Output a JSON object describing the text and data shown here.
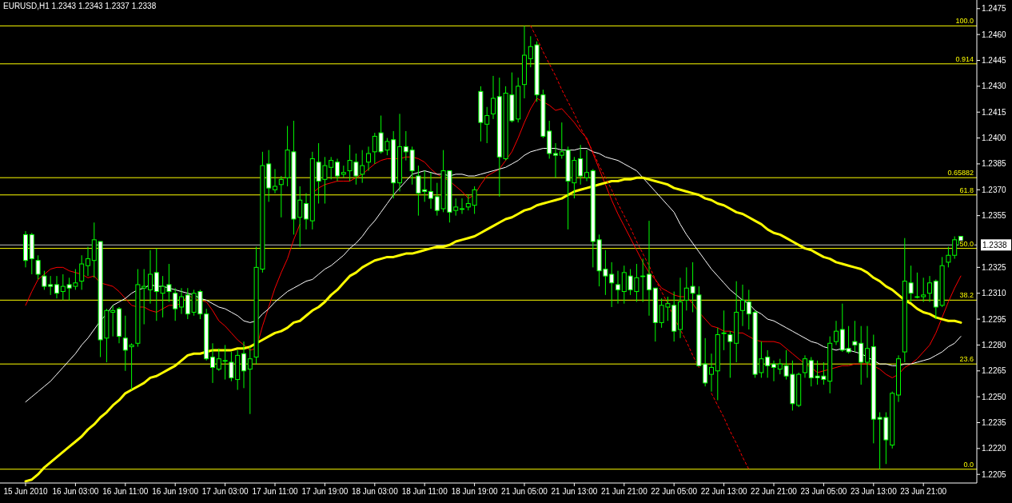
{
  "chart_data": {
    "type": "candlestick",
    "title": "EURUSD,H1  1.2343 1.2343 1.2337 1.2338",
    "categories": [
      "15 Jun 2010",
      null,
      null,
      null,
      null,
      null,
      null,
      null,
      "16 Jun 03:00",
      null,
      null,
      null,
      null,
      null,
      null,
      null,
      "16 Jun 11:00",
      null,
      null,
      null,
      null,
      null,
      null,
      null,
      "16 Jun 19:00",
      null,
      null,
      null,
      null,
      null,
      null,
      null,
      "17 Jun 03:00",
      null,
      null,
      null,
      null,
      null,
      null,
      null,
      "17 Jun 11:00",
      null,
      null,
      null,
      null,
      null,
      null,
      null,
      "17 Jun 19:00",
      null,
      null,
      null,
      null,
      null,
      null,
      null,
      "18 Jun 03:00",
      null,
      null,
      null,
      null,
      null,
      null,
      null,
      "18 Jun 11:00",
      null,
      null,
      null,
      null,
      null,
      null,
      null,
      "18 Jun 19:00",
      null,
      null,
      null,
      null,
      null,
      null,
      null,
      "21 Jun 05:00",
      null,
      null,
      null,
      null,
      null,
      null,
      null,
      "21 Jun 13:00",
      null,
      null,
      null,
      null,
      null,
      null,
      null,
      "21 Jun 21:00",
      null,
      null,
      null,
      null,
      null,
      null,
      null,
      "22 Jun 05:00",
      null,
      null,
      null,
      null,
      null,
      null,
      null,
      "22 Jun 13:00",
      null,
      null,
      null,
      null,
      null,
      null,
      null,
      "22 Jun 21:00",
      null,
      null,
      null,
      null,
      null,
      null,
      null,
      "23 Jun 05:00",
      null,
      null,
      null,
      null,
      null,
      null,
      null,
      "23 Jun 13:00",
      null,
      null,
      null,
      null,
      null,
      null,
      null,
      "23 Jun 21:00",
      null,
      null,
      null,
      null,
      null,
      null
    ],
    "ohlc": [
      [
        1.2344,
        1.2346,
        1.2325,
        1.2329
      ],
      [
        1.2344,
        1.2345,
        1.2321,
        1.233
      ],
      [
        1.2329,
        1.2332,
        1.2318,
        1.2321
      ],
      [
        1.232,
        1.2323,
        1.2312,
        1.2314
      ],
      [
        1.2315,
        1.232,
        1.2309,
        1.2314
      ],
      [
        1.2315,
        1.232,
        1.2307,
        1.231
      ],
      [
        1.2311,
        1.2321,
        1.2306,
        1.2314
      ],
      [
        1.2315,
        1.2319,
        1.2306,
        1.2313
      ],
      [
        1.2314,
        1.2324,
        1.2312,
        1.2316
      ],
      [
        1.2317,
        1.2332,
        1.2312,
        1.2327
      ],
      [
        1.2326,
        1.2337,
        1.232,
        1.233
      ],
      [
        1.2329,
        1.2351,
        1.2319,
        1.2341
      ],
      [
        1.234,
        1.234,
        1.2273,
        1.2283
      ],
      [
        1.2284,
        1.2301,
        1.227,
        1.23
      ],
      [
        1.2299,
        1.2303,
        1.2285,
        1.23
      ],
      [
        1.2301,
        1.2302,
        1.2281,
        1.2285
      ],
      [
        1.2284,
        1.2297,
        1.2265,
        1.2277
      ],
      [
        1.2279,
        1.2281,
        1.2254,
        1.228
      ],
      [
        1.2281,
        1.2324,
        1.2279,
        1.2315
      ],
      [
        1.2313,
        1.2324,
        1.2292,
        1.2314
      ],
      [
        1.2312,
        1.2335,
        1.2304,
        1.2321
      ],
      [
        1.2322,
        1.2336,
        1.2294,
        1.2311
      ],
      [
        1.231,
        1.232,
        1.2296,
        1.2314
      ],
      [
        1.2315,
        1.2327,
        1.2305,
        1.2311
      ],
      [
        1.231,
        1.2313,
        1.2294,
        1.2301
      ],
      [
        1.2302,
        1.2313,
        1.2298,
        1.2308
      ],
      [
        1.2309,
        1.2313,
        1.2295,
        1.2298
      ],
      [
        1.2299,
        1.2312,
        1.2297,
        1.231
      ],
      [
        1.2311,
        1.2312,
        1.2295,
        1.2298
      ],
      [
        1.2298,
        1.2301,
        1.2271,
        1.2272
      ],
      [
        1.2273,
        1.2281,
        1.2258,
        1.2267
      ],
      [
        1.2266,
        1.2278,
        1.2265,
        1.2272
      ],
      [
        1.2271,
        1.228,
        1.226,
        1.2271
      ],
      [
        1.227,
        1.2276,
        1.2259,
        1.2261
      ],
      [
        1.226,
        1.2277,
        1.2254,
        1.2274
      ],
      [
        1.2275,
        1.2282,
        1.2255,
        1.2265
      ],
      [
        1.2266,
        1.2279,
        1.224,
        1.2272
      ],
      [
        1.2273,
        1.2337,
        1.2269,
        1.2325
      ],
      [
        1.2324,
        1.2392,
        1.2322,
        1.2384
      ],
      [
        1.2385,
        1.2393,
        1.2363,
        1.2371
      ],
      [
        1.237,
        1.2382,
        1.2368,
        1.2372
      ],
      [
        1.2373,
        1.2378,
        1.2354,
        1.2376
      ],
      [
        1.2377,
        1.2407,
        1.2372,
        1.2393
      ],
      [
        1.2392,
        1.241,
        1.2344,
        1.2353
      ],
      [
        1.2354,
        1.2372,
        1.2337,
        1.2364
      ],
      [
        1.2362,
        1.2368,
        1.2347,
        1.2353
      ],
      [
        1.2352,
        1.2392,
        1.2347,
        1.2388
      ],
      [
        1.2386,
        1.2397,
        1.2362,
        1.2375
      ],
      [
        1.2376,
        1.2389,
        1.2362,
        1.2384
      ],
      [
        1.2383,
        1.2389,
        1.2376,
        1.2387
      ],
      [
        1.2386,
        1.2388,
        1.2375,
        1.2378
      ],
      [
        1.2379,
        1.2384,
        1.2377,
        1.238
      ],
      [
        1.2381,
        1.2396,
        1.2375,
        1.2387
      ],
      [
        1.2386,
        1.2391,
        1.2373,
        1.2378
      ],
      [
        1.2379,
        1.2393,
        1.2374,
        1.2384
      ],
      [
        1.2386,
        1.2395,
        1.2381,
        1.2391
      ],
      [
        1.2392,
        1.2403,
        1.2385,
        1.2401
      ],
      [
        1.2403,
        1.2413,
        1.2391,
        1.2392
      ],
      [
        1.2393,
        1.24,
        1.239,
        1.2398
      ],
      [
        1.2399,
        1.2404,
        1.2365,
        1.2374
      ],
      [
        1.2374,
        1.2414,
        1.2369,
        1.2395
      ],
      [
        1.2395,
        1.2404,
        1.2387,
        1.2392
      ],
      [
        1.2393,
        1.2395,
        1.2373,
        1.2381
      ],
      [
        1.2378,
        1.2384,
        1.2355,
        1.2368
      ],
      [
        1.237,
        1.2381,
        1.2363,
        1.2369
      ],
      [
        1.2369,
        1.238,
        1.2359,
        1.2365
      ],
      [
        1.2366,
        1.2374,
        1.2355,
        1.2358
      ],
      [
        1.2359,
        1.2393,
        1.2357,
        1.2381
      ],
      [
        1.2381,
        1.2381,
        1.2351,
        1.2357
      ],
      [
        1.2358,
        1.2365,
        1.2355,
        1.236
      ],
      [
        1.2359,
        1.2365,
        1.2356,
        1.2359
      ],
      [
        1.236,
        1.2367,
        1.2358,
        1.2362
      ],
      [
        1.2361,
        1.2372,
        1.2356,
        1.237
      ],
      [
        1.2427,
        1.243,
        1.2398,
        1.2409
      ],
      [
        1.2408,
        1.2418,
        1.2397,
        1.2413
      ],
      [
        1.2414,
        1.2436,
        1.2411,
        1.2423
      ],
      [
        1.2424,
        1.2435,
        1.2366,
        1.2389
      ],
      [
        1.2388,
        1.243,
        1.2387,
        1.2426
      ],
      [
        1.2425,
        1.2438,
        1.2409,
        1.241
      ],
      [
        1.2411,
        1.2435,
        1.2409,
        1.243
      ],
      [
        1.2431,
        1.2465,
        1.2423,
        1.2448
      ],
      [
        1.2446,
        1.2459,
        1.2441,
        1.2453
      ],
      [
        1.2454,
        1.2456,
        1.2421,
        1.2425
      ],
      [
        1.2425,
        1.2428,
        1.24,
        1.2401
      ],
      [
        1.2404,
        1.241,
        1.2388,
        1.2391
      ],
      [
        1.2391,
        1.2397,
        1.2377,
        1.239
      ],
      [
        1.239,
        1.2409,
        1.2388,
        1.2392
      ],
      [
        1.2393,
        1.2395,
        1.2347,
        1.2375
      ],
      [
        1.2374,
        1.2389,
        1.2365,
        1.2387
      ],
      [
        1.2388,
        1.2396,
        1.2373,
        1.2378
      ],
      [
        1.2377,
        1.2393,
        1.2375,
        1.238
      ],
      [
        1.2381,
        1.2382,
        1.2325,
        1.234
      ],
      [
        1.2341,
        1.2344,
        1.2314,
        1.2323
      ],
      [
        1.2324,
        1.2335,
        1.2309,
        1.232
      ],
      [
        1.2321,
        1.2328,
        1.2302,
        1.2316
      ],
      [
        1.2315,
        1.2323,
        1.2304,
        1.2312
      ],
      [
        1.2311,
        1.2326,
        1.2304,
        1.2322
      ],
      [
        1.232,
        1.2324,
        1.2309,
        1.2312
      ],
      [
        1.2311,
        1.2327,
        1.2305,
        1.2319
      ],
      [
        1.232,
        1.233,
        1.2305,
        1.232
      ],
      [
        1.2321,
        1.2352,
        1.2297,
        1.2312
      ],
      [
        1.2313,
        1.2313,
        1.2282,
        1.2293
      ],
      [
        1.2293,
        1.2307,
        1.229,
        1.2303
      ],
      [
        1.2302,
        1.2308,
        1.2294,
        1.2304
      ],
      [
        1.2303,
        1.2311,
        1.2282,
        1.2288
      ],
      [
        1.2289,
        1.2319,
        1.2284,
        1.2305
      ],
      [
        1.2306,
        1.2325,
        1.23,
        1.2313
      ],
      [
        1.2314,
        1.2328,
        1.2299,
        1.231
      ],
      [
        1.2309,
        1.2314,
        1.2268,
        1.2268
      ],
      [
        1.2269,
        1.2284,
        1.2256,
        1.2258
      ],
      [
        1.2263,
        1.2275,
        1.2253,
        1.2267
      ],
      [
        1.2265,
        1.229,
        1.2248,
        1.2286
      ],
      [
        1.2287,
        1.23,
        1.2277,
        1.2287
      ],
      [
        1.2286,
        1.2288,
        1.2261,
        1.2282
      ],
      [
        1.2281,
        1.2317,
        1.227,
        1.2299
      ],
      [
        1.23,
        1.2315,
        1.2291,
        1.2306
      ],
      [
        1.2305,
        1.2312,
        1.2289,
        1.2298
      ],
      [
        1.2299,
        1.23,
        1.2261,
        1.2263
      ],
      [
        1.2264,
        1.2282,
        1.2261,
        1.2272
      ],
      [
        1.2273,
        1.2277,
        1.2261,
        1.2268
      ],
      [
        1.2269,
        1.2271,
        1.2259,
        1.2267
      ],
      [
        1.2266,
        1.2272,
        1.2263,
        1.2269
      ],
      [
        1.2268,
        1.2277,
        1.226,
        1.2262
      ],
      [
        1.2263,
        1.2271,
        1.2242,
        1.2246
      ],
      [
        1.2245,
        1.2264,
        1.2244,
        1.2263
      ],
      [
        1.2264,
        1.2274,
        1.2261,
        1.2272
      ],
      [
        1.2271,
        1.2273,
        1.2256,
        1.2261
      ],
      [
        1.2262,
        1.2271,
        1.2257,
        1.2261
      ],
      [
        1.2262,
        1.227,
        1.2257,
        1.226
      ],
      [
        1.2259,
        1.2285,
        1.2252,
        1.2281
      ],
      [
        1.2282,
        1.2294,
        1.228,
        1.2288
      ],
      [
        1.2289,
        1.2304,
        1.2276,
        1.2277
      ],
      [
        1.2278,
        1.2291,
        1.2275,
        1.2276
      ],
      [
        1.2282,
        1.2294,
        1.2276,
        1.228
      ],
      [
        1.2281,
        1.2291,
        1.2257,
        1.227
      ],
      [
        1.227,
        1.2291,
        1.2261,
        1.2278
      ],
      [
        1.2279,
        1.2286,
        1.2223,
        1.2237
      ],
      [
        1.2238,
        1.2241,
        1.2208,
        1.2237
      ],
      [
        1.2238,
        1.2241,
        1.2211,
        1.2225
      ],
      [
        1.2222,
        1.2253,
        1.222,
        1.2252
      ],
      [
        1.2251,
        1.2274,
        1.2247,
        1.2272
      ],
      [
        1.2276,
        1.2342,
        1.227,
        1.2317
      ],
      [
        1.2316,
        1.2326,
        1.2305,
        1.231
      ],
      [
        1.2308,
        1.2322,
        1.2307,
        1.2308
      ],
      [
        1.2308,
        1.2319,
        1.2305,
        1.2309
      ],
      [
        1.231,
        1.232,
        1.2305,
        1.2316
      ],
      [
        1.2317,
        1.2318,
        1.2295,
        1.2302
      ],
      [
        1.2303,
        1.2331,
        1.2302,
        1.2326
      ],
      [
        1.2328,
        1.2337,
        1.2325,
        1.2332
      ],
      [
        1.2332,
        1.2343,
        1.233,
        1.2341
      ],
      [
        1.2343,
        1.2343,
        1.2337,
        1.2338
      ]
    ],
    "series": [
      {
        "type": "line",
        "color": "#ff0000",
        "values": [
          1.2303,
          1.2311,
          1.2318,
          1.2321,
          1.2324,
          1.2325,
          1.2325,
          1.2323,
          1.2322,
          1.2321,
          1.2319,
          1.232,
          1.2316,
          1.2315,
          1.2314,
          1.2311,
          1.2307,
          1.2303,
          1.2302,
          1.2302,
          1.23,
          1.2299,
          1.2301,
          1.2303,
          1.2303,
          1.2304,
          1.2309,
          1.2307,
          1.2306,
          1.2305,
          1.23,
          1.2294,
          1.2291,
          1.2287,
          1.2283,
          1.228,
          1.2277,
          1.2278,
          1.2291,
          1.2302,
          1.2313,
          1.2322,
          1.233,
          1.2341,
          1.235,
          null,
          1.2368,
          1.2371,
          1.2373,
          1.2374,
          1.2375,
          1.2375,
          1.2375,
          1.2377,
          1.2379,
          1.2382,
          1.2385,
          1.2387,
          1.2388,
          1.2388,
          1.2388,
          1.2389,
          1.2389,
          1.2388,
          1.2386,
          1.2382,
          1.2379,
          1.2377,
          1.2375,
          1.2372,
          1.2369,
          1.2365,
          1.2367,
          1.2373,
          1.2378,
          1.238,
          1.2382,
          1.2387,
          1.2392,
          1.24,
          1.2409,
          1.2417,
          1.2423,
          1.2421,
          1.2419,
          1.2416,
          1.2417,
          1.2413,
          1.2409,
          1.2404,
          1.24,
          1.2391,
          1.2382,
          1.2373,
          1.2364,
          1.2356,
          1.2349,
          1.2342,
          1.2335,
          1.2328,
          1.2322,
          1.2318,
          1.2313,
          1.2311,
          1.2309,
          1.2308,
          1.2308,
          1.2304,
          1.2299,
          1.2295,
          1.2291,
          1.229,
          1.2288,
          1.2288,
          1.2287,
          1.2287,
          1.2285,
          1.2283,
          1.2282,
          1.2282,
          1.2282,
          1.2281,
          1.2278,
          1.2275,
          1.2272,
          1.2269,
          1.2267,
          1.2264,
          1.2265,
          1.2266,
          1.2267,
          1.2268,
          1.2268,
          1.2269,
          1.2269,
          1.2269,
          1.2268,
          1.2266,
          1.2263,
          1.2261,
          1.2263,
          1.2267,
          1.2269,
          1.2272,
          1.2276,
          1.228,
          1.2287,
          1.2296,
          1.2305,
          1.2313,
          1.232
        ]
      },
      {
        "type": "line",
        "color": "#ffffff",
        "values": [
          1.2247,
          1.225,
          1.2253,
          1.2256,
          1.2259,
          1.2263,
          1.2267,
          1.2271,
          1.2275,
          1.228,
          1.2284,
          1.2289,
          1.2294,
          1.2298,
          1.2303,
          1.2305,
          1.2307,
          1.231,
          1.2312,
          1.2313,
          1.2315,
          1.2314,
          1.2314,
          1.2313,
          1.2312,
          1.2311,
          1.231,
          1.2309,
          1.2307,
          1.2306,
          1.2304,
          1.2302,
          1.2301,
          1.2299,
          1.2297,
          1.2294,
          1.2293,
          1.2294,
          1.2298,
          1.2301,
          1.2305,
          1.2308,
          1.2311,
          1.2313,
          1.2315,
          1.2317,
          1.2318,
          1.2321,
          1.2324,
          1.2326,
          1.2329,
          1.2332,
          1.2336,
          1.2339,
          1.2343,
          1.2348,
          1.2352,
          1.2357,
          1.2362,
          1.2367,
          1.2371,
          1.2375,
          1.2379,
          1.238,
          1.2381,
          1.238,
          1.2379,
          1.2379,
          1.2378,
          1.2379,
          1.2379,
          1.2378,
          1.2378,
          1.2379,
          1.238,
          1.2381,
          1.2382,
          1.2383,
          1.2385,
          1.2387,
          1.239,
          1.2392,
          1.2393,
          1.2394,
          1.2394,
          1.2394,
          1.2393,
          1.2393,
          1.2393,
          1.2394,
          1.2394,
          1.2392,
          1.2391,
          1.2389,
          1.2388,
          1.2387,
          1.2385,
          1.2383,
          1.2381,
          1.2377,
          1.2373,
          1.2369,
          1.2365,
          1.2361,
          1.2357,
          1.235,
          1.2344,
          1.2339,
          1.2334,
          1.2329,
          1.2324,
          1.232,
          1.2316,
          1.2312,
          1.2309,
          1.2306,
          1.2304,
          1.23,
          1.2298,
          1.2295,
          1.2294,
          1.2292,
          1.229,
          1.2288,
          1.2286,
          1.2284,
          1.2282,
          1.2281,
          1.2279,
          1.2278,
          1.2277,
          1.2278,
          1.2277,
          1.2276,
          1.2275,
          1.2273,
          1.2271,
          1.2269,
          1.2269,
          1.2268,
          1.2268,
          1.2269,
          1.2269,
          1.227,
          1.2271,
          1.2272,
          1.2274,
          1.2276,
          1.2279,
          1.2281,
          1.2285
        ]
      },
      {
        "type": "line",
        "color": "#ffff00",
        "values": [
          1.2201,
          1.2202,
          1.2205,
          1.2209,
          1.2212,
          1.2215,
          1.2218,
          1.2221,
          1.2224,
          1.2227,
          1.2231,
          1.2234,
          1.2238,
          1.2241,
          1.2245,
          1.2248,
          1.2252,
          1.2254,
          1.2256,
          1.2258,
          1.2261,
          1.2262,
          1.2264,
          1.2266,
          1.2268,
          1.2271,
          1.2274,
          1.2275,
          1.2275,
          1.2276,
          1.2277,
          1.2277,
          1.2277,
          1.2277,
          1.2278,
          1.2278,
          1.2279,
          1.2281,
          1.2283,
          1.2285,
          1.2287,
          1.2288,
          1.229,
          1.2293,
          1.2294,
          1.2297,
          1.23,
          1.2302,
          1.2305,
          1.2309,
          1.2312,
          1.2316,
          1.232,
          1.2322,
          1.2325,
          1.2327,
          1.2329,
          1.233,
          1.2331,
          1.2331,
          1.2332,
          1.2333,
          1.2333,
          1.2334,
          1.2335,
          1.2336,
          1.2337,
          1.2337,
          1.2338,
          1.234,
          1.2341,
          1.2342,
          1.2343,
          1.2345,
          1.2347,
          1.2349,
          1.2351,
          1.2353,
          1.2354,
          1.2356,
          1.2358,
          1.2359,
          1.2361,
          1.2362,
          1.2363,
          1.2364,
          1.2365,
          1.2367,
          1.2369,
          1.237,
          1.2371,
          1.2372,
          1.2373,
          1.2374,
          1.2375,
          1.2375,
          1.2376,
          1.2376,
          1.2377,
          1.2377,
          1.2376,
          1.2375,
          1.2374,
          1.2373,
          1.2371,
          1.237,
          1.2369,
          1.2368,
          1.2367,
          1.2365,
          1.2364,
          1.2362,
          1.2361,
          1.2359,
          1.2357,
          1.2356,
          1.2354,
          1.2352,
          1.235,
          1.2347,
          1.2345,
          1.2344,
          1.2342,
          1.234,
          1.2338,
          1.2336,
          1.2335,
          1.2333,
          1.2331,
          1.233,
          1.2328,
          1.2327,
          1.2326,
          1.2325,
          1.2324,
          1.2322,
          1.2319,
          1.2317,
          1.2314,
          1.2312,
          1.2309,
          1.2306,
          1.2304,
          1.2301,
          1.2299,
          1.2298,
          1.2296,
          1.2295,
          1.2294,
          1.2294,
          1.2293
        ]
      },
      {
        "type": "line",
        "color": "#ff0000",
        "line_style": "dashed",
        "values": [
          null,
          null,
          null,
          null,
          null,
          null,
          null,
          null,
          null,
          null,
          null,
          null,
          null,
          null,
          null,
          null,
          null,
          null,
          null,
          null,
          null,
          null,
          null,
          null,
          null,
          null,
          null,
          null,
          null,
          null,
          null,
          null,
          null,
          null,
          null,
          null,
          null,
          null,
          null,
          null,
          null,
          null,
          null,
          null,
          null,
          null,
          null,
          null,
          null,
          null,
          null,
          null,
          null,
          null,
          null,
          null,
          null,
          null,
          null,
          null,
          null,
          null,
          null,
          null,
          null,
          null,
          null,
          null,
          null,
          null,
          null,
          null,
          null,
          null,
          null,
          null,
          null,
          null,
          null,
          null,
          null,
          1.2465,
          1.2458,
          1.245,
          1.2443,
          1.2436,
          1.2428,
          1.2421,
          1.2414,
          1.2406,
          1.2399,
          1.2392,
          1.2384,
          1.2377,
          1.237,
          1.2362,
          1.2355,
          1.2348,
          1.234,
          1.2333,
          1.2326,
          1.2318,
          1.2311,
          1.2304,
          1.2296,
          1.2289,
          1.2282,
          1.2274,
          1.2267,
          null,
          1.2252,
          1.2245,
          1.2238,
          1.223,
          1.2223,
          1.2215,
          1.2208,
          null,
          null,
          null,
          null,
          null,
          null,
          null,
          null,
          null,
          null,
          null,
          null,
          null,
          null,
          null,
          null,
          null,
          null,
          null,
          null,
          null,
          null,
          null,
          null,
          null,
          null,
          null,
          null,
          null,
          null,
          null,
          null,
          null,
          null
        ]
      }
    ],
    "ylim": [
      1.22,
      1.248
    ],
    "yticks": [
      1.2205,
      {
        "value": 1.222,
        "label": "1.2220"
      },
      1.2235,
      {
        "value": 1.225,
        "label": "1.2250"
      },
      1.2265,
      {
        "value": 1.228,
        "label": "1.2280"
      },
      1.2295,
      {
        "value": 1.231,
        "label": "1.2310"
      },
      1.2325,
      1.2355,
      {
        "value": 1.237,
        "label": "1.2370"
      },
      1.2385,
      {
        "value": 1.24,
        "label": "1.2400"
      },
      1.2415,
      {
        "value": 1.243,
        "label": "1.2430"
      },
      1.2445,
      {
        "value": 1.246,
        "label": "1.2460"
      },
      1.2475
    ],
    "ref_lines": [
      {
        "axis": "y",
        "value": 1.2338,
        "label": "1.2338",
        "color": "#c0c0c0"
      },
      {
        "axis": "y",
        "value": 1.2465,
        "color": "#ffff00"
      },
      {
        "axis": "y",
        "value": 1.2443,
        "color": "#ffff00"
      },
      {
        "axis": "y",
        "value": 1.2377,
        "color": "#ffff00"
      },
      {
        "axis": "y",
        "value": 1.2367,
        "color": "#ffff00"
      },
      {
        "axis": "y",
        "value": 1.2336,
        "color": "#ffff00"
      },
      {
        "axis": "y",
        "value": 1.2306,
        "color": "#ffff00"
      },
      {
        "axis": "y",
        "value": 1.2269,
        "color": "#ffff00"
      },
      {
        "axis": "y",
        "value": 1.2208,
        "color": "#ffff00"
      }
    ],
    "annotations": [
      {
        "text": "100.0",
        "y": 1.2465
      },
      {
        "text": "0.914",
        "y": 1.2443
      },
      {
        "text": "0.65882",
        "y": 1.2377
      },
      {
        "text": "61.8",
        "y": 1.2367
      },
      {
        "text": "50.0",
        "y": 1.2336
      },
      {
        "text": "38.2",
        "y": 1.2306
      },
      {
        "text": "23.6",
        "y": 1.2269
      },
      {
        "text": "0.0",
        "y": 1.2208
      }
    ]
  }
}
